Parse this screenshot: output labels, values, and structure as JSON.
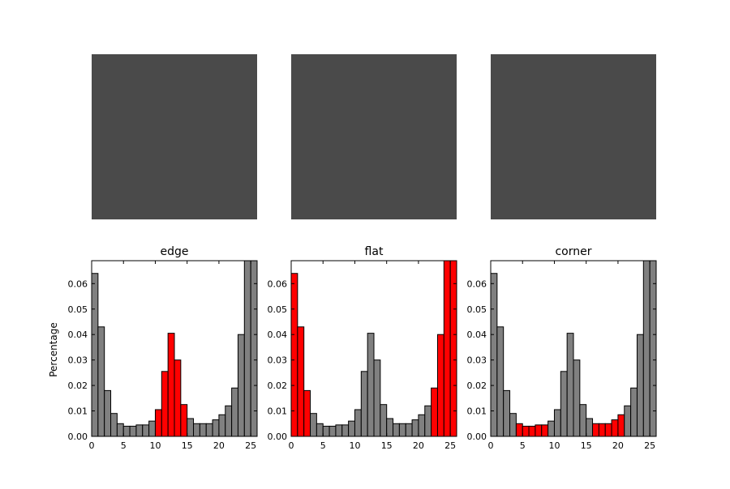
{
  "figure": {
    "ylabel": "Percentage",
    "ylim": [
      0,
      0.069
    ],
    "xlim": [
      0,
      26
    ],
    "x_ticks": [
      0,
      5,
      10,
      15,
      20,
      25
    ],
    "y_ticks": [
      0.0,
      0.01,
      0.02,
      0.03,
      0.04,
      0.05,
      0.06
    ],
    "colors": {
      "bar_default": "#808080",
      "bar_highlight": "#ff0000",
      "bar_edge": "#000000",
      "image_base": "#4a4a4a",
      "image_overlay": "#e03a3a"
    }
  },
  "images": [
    {
      "name": "edge-overlay-image",
      "overlay_pattern": "edges"
    },
    {
      "name": "flat-overlay-image",
      "overlay_pattern": "flat"
    },
    {
      "name": "corner-overlay-image",
      "overlay_pattern": "corners"
    }
  ],
  "chart_data": [
    {
      "type": "bar",
      "title": "edge",
      "ylabel": "Percentage",
      "x": [
        0,
        1,
        2,
        3,
        4,
        5,
        6,
        7,
        8,
        9,
        10,
        11,
        12,
        13,
        14,
        15,
        16,
        17,
        18,
        19,
        20,
        21,
        22,
        23,
        24,
        25
      ],
      "values": [
        0.064,
        0.043,
        0.018,
        0.009,
        0.005,
        0.004,
        0.004,
        0.0045,
        0.0045,
        0.006,
        0.0105,
        0.0255,
        0.0405,
        0.03,
        0.0125,
        0.007,
        0.005,
        0.005,
        0.005,
        0.0065,
        0.0085,
        0.012,
        0.019,
        0.04,
        0.069,
        0.069
      ],
      "highlight": [
        10,
        11,
        12,
        13,
        14
      ],
      "xlim": [
        0,
        26
      ],
      "ylim": [
        0,
        0.069
      ]
    },
    {
      "type": "bar",
      "title": "flat",
      "x": [
        0,
        1,
        2,
        3,
        4,
        5,
        6,
        7,
        8,
        9,
        10,
        11,
        12,
        13,
        14,
        15,
        16,
        17,
        18,
        19,
        20,
        21,
        22,
        23,
        24,
        25
      ],
      "values": [
        0.064,
        0.043,
        0.018,
        0.009,
        0.005,
        0.004,
        0.004,
        0.0045,
        0.0045,
        0.006,
        0.0105,
        0.0255,
        0.0405,
        0.03,
        0.0125,
        0.007,
        0.005,
        0.005,
        0.005,
        0.0065,
        0.0085,
        0.012,
        0.019,
        0.04,
        0.069,
        0.069
      ],
      "highlight": [
        0,
        1,
        2,
        22,
        23,
        24,
        25
      ],
      "xlim": [
        0,
        26
      ],
      "ylim": [
        0,
        0.069
      ]
    },
    {
      "type": "bar",
      "title": "corner",
      "x": [
        0,
        1,
        2,
        3,
        4,
        5,
        6,
        7,
        8,
        9,
        10,
        11,
        12,
        13,
        14,
        15,
        16,
        17,
        18,
        19,
        20,
        21,
        22,
        23,
        24,
        25
      ],
      "values": [
        0.064,
        0.043,
        0.018,
        0.009,
        0.005,
        0.004,
        0.004,
        0.0045,
        0.0045,
        0.006,
        0.0105,
        0.0255,
        0.0405,
        0.03,
        0.0125,
        0.007,
        0.005,
        0.005,
        0.005,
        0.0065,
        0.0085,
        0.012,
        0.019,
        0.04,
        0.069,
        0.069
      ],
      "highlight": [
        4,
        5,
        6,
        7,
        8,
        16,
        17,
        18,
        19,
        20
      ],
      "xlim": [
        0,
        26
      ],
      "ylim": [
        0,
        0.069
      ]
    }
  ]
}
